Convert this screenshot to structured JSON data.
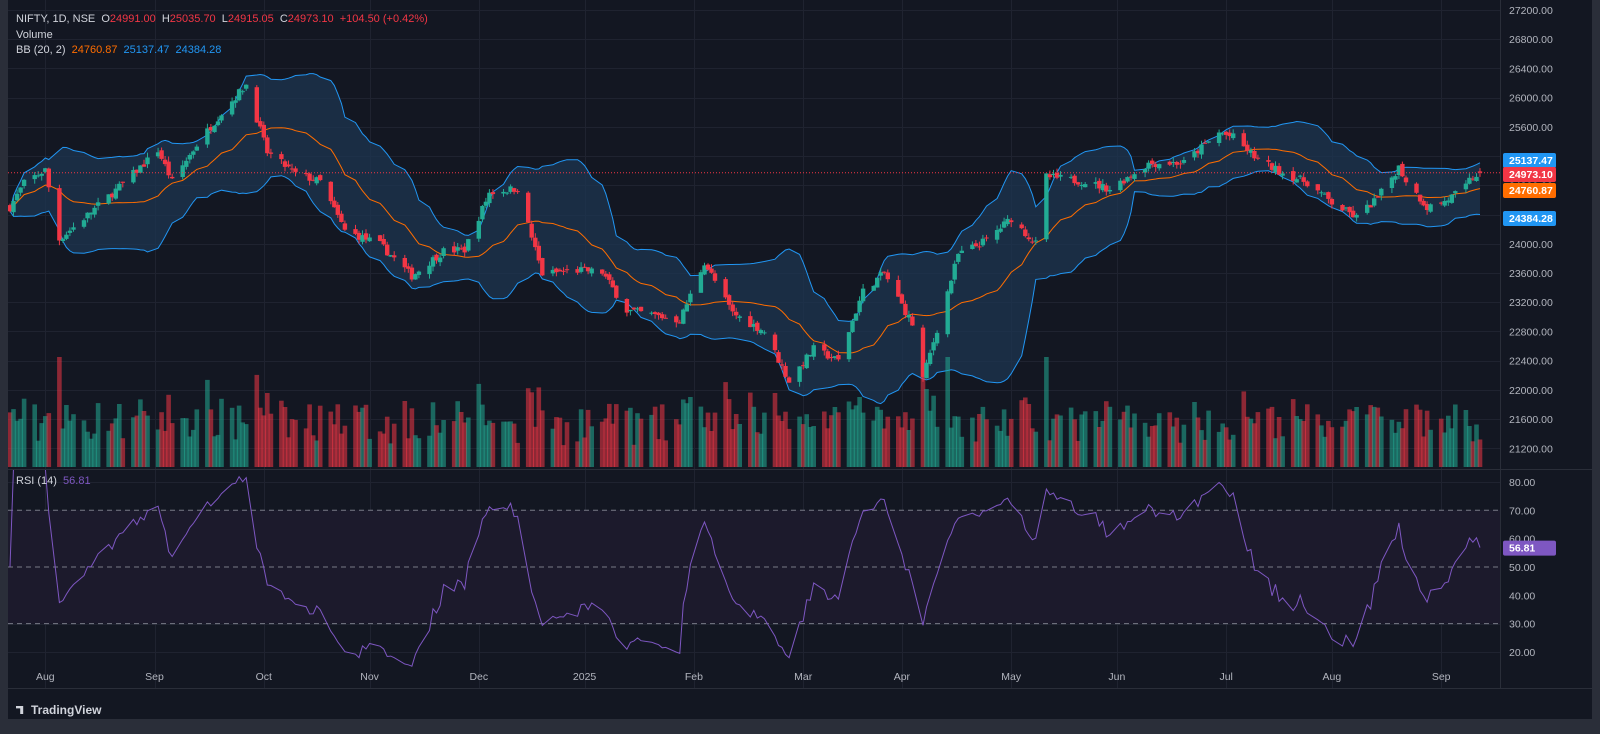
{
  "legend": {
    "symbol": "NIFTY, 1D, NSE",
    "o_label": "O",
    "o": "24991.00",
    "h_label": "H",
    "h": "25035.70",
    "l_label": "L",
    "l": "24915.05",
    "c_label": "C",
    "c": "24973.10",
    "change": "+104.50 (+0.42%)",
    "volume": "Volume",
    "bb_name": "BB (20, 2)",
    "bb_mid": "24760.87",
    "bb_upper": "25137.47",
    "bb_lower": "24384.28",
    "rsi_name": "RSI (14)",
    "rsi_value": "56.81"
  },
  "brand": "TradingView",
  "colors": {
    "background": "#131722",
    "up": "#22ab94",
    "down": "#f23645",
    "bb_band": "#2196f3",
    "bb_fill": "#1e3550",
    "bb_mid": "#ff6d00",
    "rsi_line": "#7e57c2",
    "rsi_band": "#1c1a2c",
    "last_price": "#f23645"
  },
  "chart_data": {
    "type": "candlestick",
    "symbol": "NIFTY",
    "interval": "1D",
    "price_axis": {
      "ticks": [
        "27200.00",
        "26800.00",
        "26400.00",
        "26000.00",
        "25600.00",
        "25200.00",
        "24800.00",
        "24400.00",
        "24000.00",
        "23600.00",
        "23200.00",
        "22800.00",
        "22400.00",
        "22000.00",
        "21600.00",
        "21200.00"
      ],
      "range": [
        20950,
        27200
      ]
    },
    "rsi_axis": {
      "ticks": [
        "80.00",
        "70.00",
        "60.00",
        "50.00",
        "40.00",
        "30.00",
        "20.00"
      ],
      "range": [
        15,
        85
      ],
      "levels": [
        70,
        50,
        30
      ]
    },
    "time_axis": [
      "Aug",
      "Sep",
      "Oct",
      "Nov",
      "Dec",
      "2025",
      "Feb",
      "Mar",
      "Apr",
      "May",
      "Jun",
      "Jul",
      "Aug",
      "Sep"
    ],
    "price_labels": {
      "bb_upper": "25137.47",
      "close": "24973.10",
      "bb_mid": "24760.87",
      "bb_lower": "24384.28",
      "rsi": "56.81"
    },
    "close_anchors": [
      [
        "2024-07-22",
        24500
      ],
      [
        "2024-07-26",
        24830
      ],
      [
        "2024-08-01",
        25010
      ],
      [
        "2024-08-05",
        24060
      ],
      [
        "2024-08-12",
        24350
      ],
      [
        "2024-08-23",
        24820
      ],
      [
        "2024-09-02",
        25280
      ],
      [
        "2024-09-06",
        24850
      ],
      [
        "2024-09-13",
        25360
      ],
      [
        "2024-09-20",
        25790
      ],
      [
        "2024-09-27",
        26180
      ],
      [
        "2024-10-03",
        25250
      ],
      [
        "2024-10-11",
        24960
      ],
      [
        "2024-10-18",
        24850
      ],
      [
        "2024-10-25",
        24180
      ],
      [
        "2024-11-04",
        23990
      ],
      [
        "2024-11-13",
        23560
      ],
      [
        "2024-11-22",
        23900
      ],
      [
        "2024-11-28",
        23920
      ],
      [
        "2024-12-05",
        24700
      ],
      [
        "2024-12-13",
        24760
      ],
      [
        "2024-12-20",
        23590
      ],
      [
        "2024-12-31",
        23640
      ],
      [
        "2025-01-06",
        23610
      ],
      [
        "2025-01-13",
        23090
      ],
      [
        "2025-01-21",
        23020
      ],
      [
        "2025-01-28",
        22950
      ],
      [
        "2025-02-04",
        23750
      ],
      [
        "2025-02-12",
        23050
      ],
      [
        "2025-02-21",
        22800
      ],
      [
        "2025-02-28",
        22120
      ],
      [
        "2025-03-07",
        22560
      ],
      [
        "2025-03-14",
        22400
      ],
      [
        "2025-03-21",
        23350
      ],
      [
        "2025-03-27",
        23600
      ],
      [
        "2025-04-04",
        22900
      ],
      [
        "2025-04-07",
        22160
      ],
      [
        "2025-04-11",
        22830
      ],
      [
        "2025-04-17",
        23850
      ],
      [
        "2025-04-25",
        24050
      ],
      [
        "2025-05-02",
        24350
      ],
      [
        "2025-05-09",
        24000
      ],
      [
        "2025-05-12",
        24920
      ],
      [
        "2025-05-23",
        24850
      ],
      [
        "2025-05-30",
        24750
      ],
      [
        "2025-06-10",
        25100
      ],
      [
        "2025-06-20",
        25110
      ],
      [
        "2025-06-30",
        25520
      ],
      [
        "2025-07-04",
        25460
      ],
      [
        "2025-07-11",
        25150
      ],
      [
        "2025-07-18",
        24970
      ],
      [
        "2025-07-25",
        24840
      ],
      [
        "2025-08-01",
        24560
      ],
      [
        "2025-08-08",
        24360
      ],
      [
        "2025-08-14",
        24630
      ],
      [
        "2025-08-20",
        25050
      ],
      [
        "2025-08-22",
        24870
      ],
      [
        "2025-08-28",
        24500
      ],
      [
        "2025-09-02",
        24580
      ],
      [
        "2025-09-08",
        24773
      ],
      [
        "2025-09-09",
        24868
      ],
      [
        "2025-09-12",
        24973.1
      ]
    ]
  }
}
